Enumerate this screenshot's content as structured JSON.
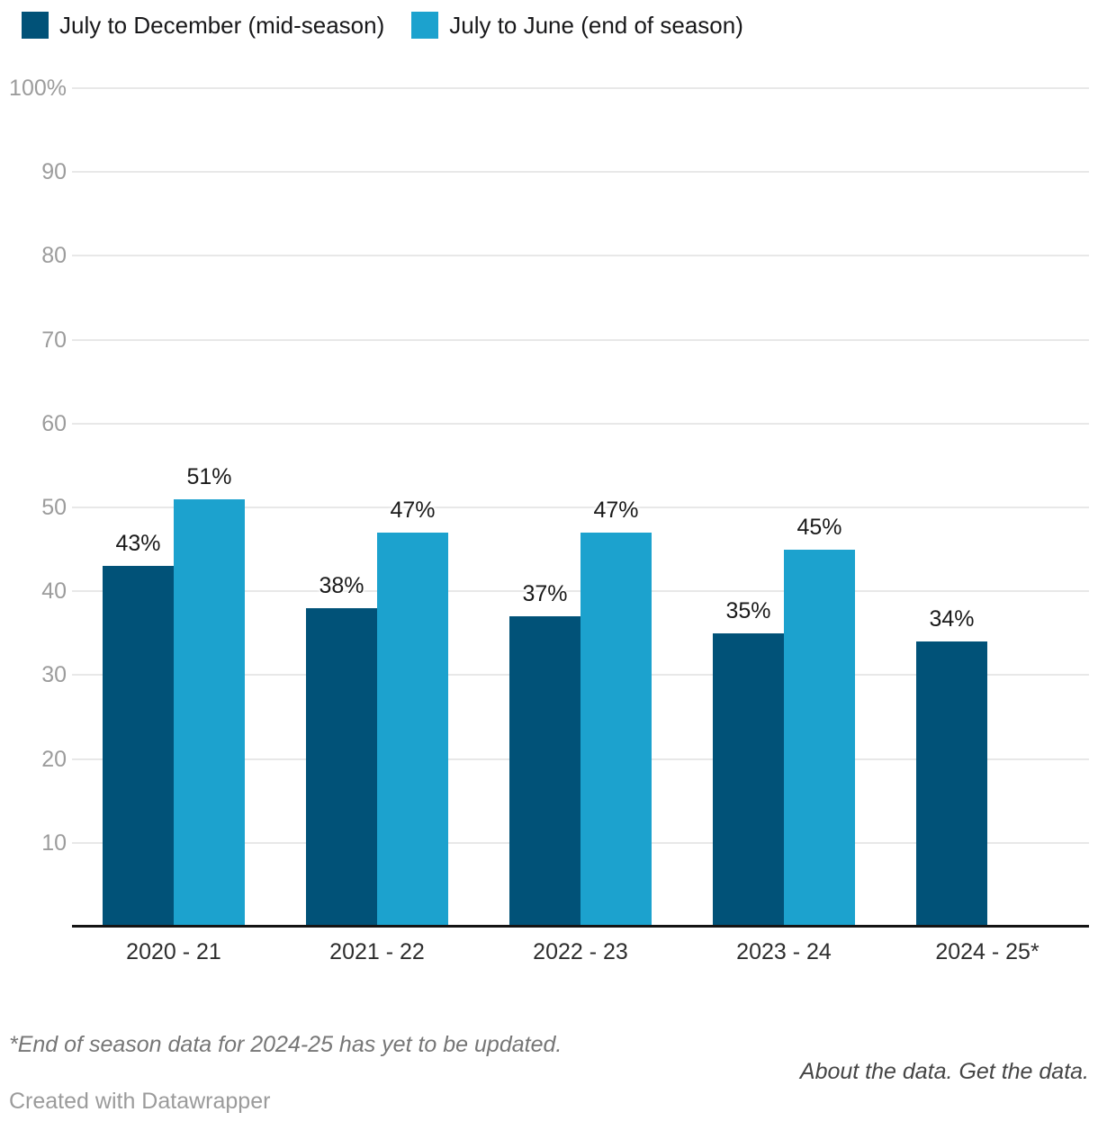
{
  "legend": {
    "items": [
      {
        "label": "July to December (mid-season)",
        "color": "#015278"
      },
      {
        "label": "July to June (end of season)",
        "color": "#1ca2ce"
      }
    ]
  },
  "chart_data": {
    "type": "bar",
    "categories": [
      "2020 - 21",
      "2021 - 22",
      "2022 - 23",
      "2023 - 24",
      "2024 - 25*"
    ],
    "series": [
      {
        "name": "July to December (mid-season)",
        "color": "#015278",
        "values": [
          43,
          38,
          37,
          35,
          34
        ]
      },
      {
        "name": "July to June (end of season)",
        "color": "#1ca2ce",
        "values": [
          51,
          47,
          47,
          45,
          null
        ]
      }
    ],
    "value_labels": [
      [
        "43%",
        "38%",
        "37%",
        "35%",
        "34%"
      ],
      [
        "51%",
        "47%",
        "47%",
        "45%",
        null
      ]
    ],
    "ylim": [
      0,
      100
    ],
    "yticks": [
      10,
      20,
      30,
      40,
      50,
      60,
      70,
      80,
      90,
      100
    ],
    "ytick_labels": [
      "10",
      "20",
      "30",
      "40",
      "50",
      "60",
      "70",
      "80",
      "90",
      "100%"
    ],
    "grid": true,
    "legend_position": "top-left",
    "title": "",
    "xlabel": "",
    "ylabel": ""
  },
  "footer": {
    "footnote": "*End of season data for 2024-25 has yet to be updated.",
    "about_link": "About the data.",
    "get_link": "Get the data.",
    "credit": "Created with Datawrapper"
  }
}
